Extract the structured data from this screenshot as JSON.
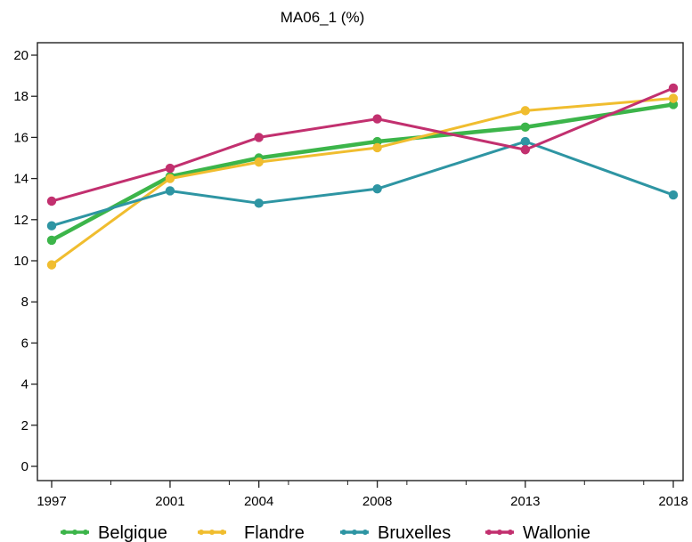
{
  "chart_data": {
    "type": "line",
    "title": "MA06_1 (%)",
    "xlabel": "",
    "ylabel": "",
    "x": [
      1997,
      2001,
      2004,
      2008,
      2013,
      2018
    ],
    "xlim": [
      1997,
      2018
    ],
    "ylim": [
      0,
      20
    ],
    "yticks": [
      0,
      2,
      4,
      6,
      8,
      10,
      12,
      14,
      16,
      18,
      20
    ],
    "grid": false,
    "legend_position": "bottom",
    "series": [
      {
        "name": "Belgique",
        "color": "#3cb54a",
        "values": [
          11.0,
          14.1,
          15.0,
          15.8,
          16.5,
          17.6
        ]
      },
      {
        "name": "Flandre",
        "color": "#f0bd2f",
        "values": [
          9.8,
          14.0,
          14.8,
          15.5,
          17.3,
          17.9
        ]
      },
      {
        "name": "Bruxelles",
        "color": "#2e95a3",
        "values": [
          11.7,
          13.4,
          12.8,
          13.5,
          15.8,
          13.2
        ]
      },
      {
        "name": "Wallonie",
        "color": "#c2306f",
        "values": [
          12.9,
          14.5,
          16.0,
          16.9,
          15.4,
          18.4
        ]
      }
    ]
  }
}
